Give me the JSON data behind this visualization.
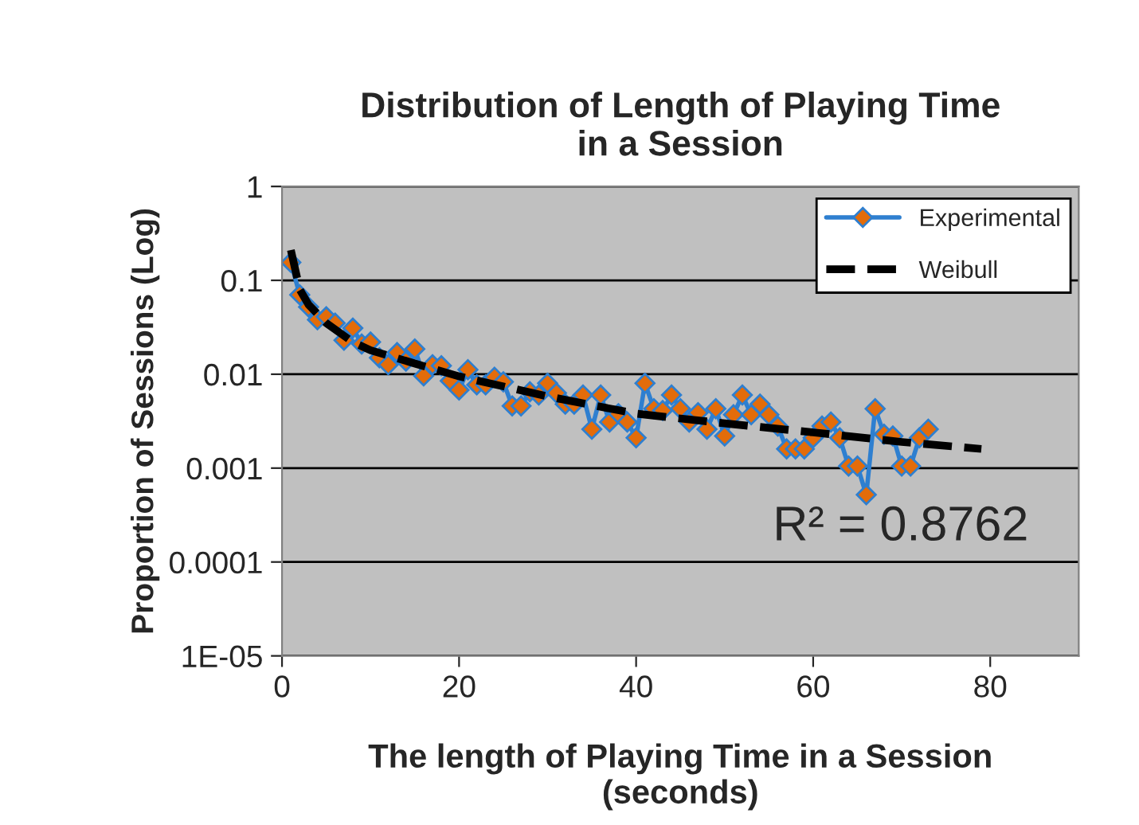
{
  "chart_data": {
    "type": "line",
    "title": "Distribution of Length of Playing Time\nin a Session",
    "xlabel": "The length of Playing Time in a Session\n(seconds)",
    "ylabel": "Proportion of Sessions (Log)",
    "log": "y",
    "xlim": [
      0,
      90
    ],
    "xticks": [
      0,
      20,
      40,
      60,
      80
    ],
    "ylim": [
      1e-05,
      1
    ],
    "yticks": [
      {
        "value": 1,
        "label": "1"
      },
      {
        "value": 0.1,
        "label": "0.1"
      },
      {
        "value": 0.01,
        "label": "0.01"
      },
      {
        "value": 0.001,
        "label": "0.001"
      },
      {
        "value": 0.0001,
        "label": "0.0001"
      },
      {
        "value": 1e-05,
        "label": "1E-05"
      }
    ],
    "grid": "y",
    "legend": "top right",
    "annotations": [
      "R² = 0.8762"
    ],
    "series": [
      {
        "name": "Experimental",
        "color": "#2e7fd0",
        "marker": "diamond",
        "line_style": "solid",
        "x": [
          1,
          2,
          3,
          4,
          5,
          6,
          7,
          8,
          9,
          10,
          11,
          12,
          13,
          14,
          15,
          16,
          17,
          18,
          19,
          20,
          21,
          22,
          23,
          24,
          25,
          26,
          27,
          28,
          29,
          30,
          31,
          32,
          33,
          34,
          35,
          36,
          37,
          38,
          39,
          40,
          41,
          42,
          43,
          44,
          45,
          46,
          47,
          48,
          49,
          50,
          51,
          52,
          53,
          54,
          55,
          56,
          57,
          58,
          59,
          60,
          61,
          62,
          63,
          64,
          65,
          66,
          67,
          68,
          69,
          70,
          71,
          72,
          73
        ],
        "values": [
          0.155,
          0.07,
          0.052,
          0.038,
          0.041,
          0.035,
          0.023,
          0.031,
          0.021,
          0.022,
          0.015,
          0.0126,
          0.017,
          0.0138,
          0.0186,
          0.0096,
          0.0126,
          0.0123,
          0.0085,
          0.0068,
          0.0112,
          0.0077,
          0.0077,
          0.0093,
          0.0083,
          0.0046,
          0.0046,
          0.0065,
          0.006,
          0.008,
          0.0063,
          0.0048,
          0.0048,
          0.006,
          0.0026,
          0.006,
          0.0031,
          0.0038,
          0.0031,
          0.0021,
          0.008,
          0.0043,
          0.0041,
          0.006,
          0.0043,
          0.0031,
          0.0039,
          0.0026,
          0.0043,
          0.0022,
          0.0037,
          0.006,
          0.0037,
          0.0048,
          0.0037,
          0.0028,
          0.0016,
          0.0016,
          0.0016,
          0.0021,
          0.0028,
          0.0031,
          0.0021,
          0.00105,
          0.00105,
          0.00052,
          0.0043,
          0.0023,
          0.0022,
          0.00105,
          0.00105,
          0.0021,
          0.0026
        ]
      },
      {
        "name": "Weibull",
        "color": "#000000",
        "marker": "none",
        "line_style": "dashed",
        "x": [
          1,
          2,
          3,
          5,
          8,
          10,
          15,
          20,
          30,
          40,
          50,
          60,
          70,
          79
        ],
        "values": [
          0.21,
          0.08,
          0.055,
          0.035,
          0.022,
          0.018,
          0.013,
          0.0095,
          0.0058,
          0.0038,
          0.003,
          0.0024,
          0.0019,
          0.0016
        ]
      }
    ]
  }
}
